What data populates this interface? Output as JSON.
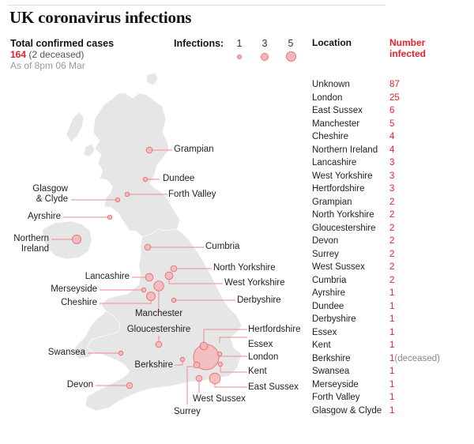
{
  "title": "UK coronavirus infections",
  "summary": {
    "header": "Total confirmed cases",
    "total": "164",
    "deceased_note": " (2 deceased)",
    "as_of": "As of 8pm 06 Mar"
  },
  "legend": {
    "label": "Infections:",
    "items": [
      {
        "value": "1",
        "size": 6
      },
      {
        "value": "3",
        "size": 10
      },
      {
        "value": "5",
        "size": 13
      }
    ]
  },
  "table": {
    "col_location": "Location",
    "col_number": "Number infected",
    "rows": [
      {
        "location": "Unknown",
        "count": "87",
        "note": ""
      },
      {
        "location": "London",
        "count": "25",
        "note": ""
      },
      {
        "location": "East Sussex",
        "count": "6",
        "note": ""
      },
      {
        "location": "Manchester",
        "count": "5",
        "note": ""
      },
      {
        "location": "Cheshire",
        "count": "4",
        "note": ""
      },
      {
        "location": "Northern Ireland",
        "count": "4",
        "note": ""
      },
      {
        "location": "Lancashire",
        "count": "3",
        "note": ""
      },
      {
        "location": "West Yorkshire",
        "count": "3",
        "note": ""
      },
      {
        "location": "Hertfordshire",
        "count": "3",
        "note": ""
      },
      {
        "location": "Grampian",
        "count": "2",
        "note": ""
      },
      {
        "location": "North Yorkshire",
        "count": "2",
        "note": ""
      },
      {
        "location": "Gloucestershire",
        "count": "2",
        "note": ""
      },
      {
        "location": "Devon",
        "count": "2",
        "note": ""
      },
      {
        "location": "Surrey",
        "count": "2",
        "note": ""
      },
      {
        "location": "West Sussex",
        "count": "2",
        "note": ""
      },
      {
        "location": "Cumbria",
        "count": "2",
        "note": ""
      },
      {
        "location": "Ayrshire",
        "count": "1",
        "note": ""
      },
      {
        "location": "Dundee",
        "count": "1",
        "note": ""
      },
      {
        "location": "Derbyshire",
        "count": "1",
        "note": ""
      },
      {
        "location": "Essex",
        "count": "1",
        "note": ""
      },
      {
        "location": "Kent",
        "count": "1",
        "note": ""
      },
      {
        "location": "Berkshire",
        "count": "1",
        "note": "(deceased)"
      },
      {
        "location": "Swansea",
        "count": "1",
        "note": ""
      },
      {
        "location": "Merseyside",
        "count": "1",
        "note": ""
      },
      {
        "location": "Forth Valley",
        "count": "1",
        "note": ""
      },
      {
        "location": "Glasgow & Clyde",
        "count": "1",
        "note": ""
      }
    ]
  },
  "colors": {
    "accent": "#e8202a",
    "bubble_fill": "#f4b6b8",
    "bubble_stroke": "#e8747a",
    "leader": "#ee8a8f",
    "land": "#e6e6e6"
  },
  "map_labels": {
    "grampian": "Grampian",
    "dundee": "Dundee",
    "forth_valley": "Forth Valley",
    "glasgow_1": "Glasgow",
    "glasgow_2": "& Clyde",
    "ayrshire": "Ayrshire",
    "ni_1": "Northern",
    "ni_2": "Ireland",
    "cumbria": "Cumbria",
    "north_yorkshire": "North Yorkshire",
    "lancashire": "Lancashire",
    "west_yorkshire": "West Yorkshire",
    "merseyside": "Merseyside",
    "cheshire": "Cheshire",
    "derbyshire": "Derbyshire",
    "manchester": "Manchester",
    "gloucestershire": "Gloucestershire",
    "hertfordshire": "Hertfordshire",
    "essex": "Essex",
    "swansea": "Swansea",
    "london": "London",
    "berkshire": "Berkshire",
    "kent": "Kent",
    "devon": "Devon",
    "east_sussex": "East Sussex",
    "west_sussex": "West Sussex",
    "surrey": "Surrey"
  },
  "chart_data": {
    "type": "bubble-map",
    "title": "UK coronavirus infections",
    "subtitle": "Total confirmed cases 164 (2 deceased), As of 8pm 06 Mar",
    "legend": {
      "title": "Infections:",
      "sizes": [
        1,
        3,
        5
      ]
    },
    "columns": [
      "Location",
      "Number infected"
    ],
    "categories": [
      "Unknown",
      "London",
      "East Sussex",
      "Manchester",
      "Cheshire",
      "Northern Ireland",
      "Lancashire",
      "West Yorkshire",
      "Hertfordshire",
      "Grampian",
      "North Yorkshire",
      "Gloucestershire",
      "Devon",
      "Surrey",
      "West Sussex",
      "Cumbria",
      "Ayrshire",
      "Dundee",
      "Derbyshire",
      "Essex",
      "Kent",
      "Berkshire",
      "Swansea",
      "Merseyside",
      "Forth Valley",
      "Glasgow & Clyde"
    ],
    "values": [
      87,
      25,
      6,
      5,
      4,
      4,
      3,
      3,
      3,
      2,
      2,
      2,
      2,
      2,
      2,
      2,
      1,
      1,
      1,
      1,
      1,
      1,
      1,
      1,
      1,
      1
    ],
    "total": 164,
    "deceased": 2,
    "annotations": [
      "Berkshire: 1 (deceased)"
    ]
  }
}
